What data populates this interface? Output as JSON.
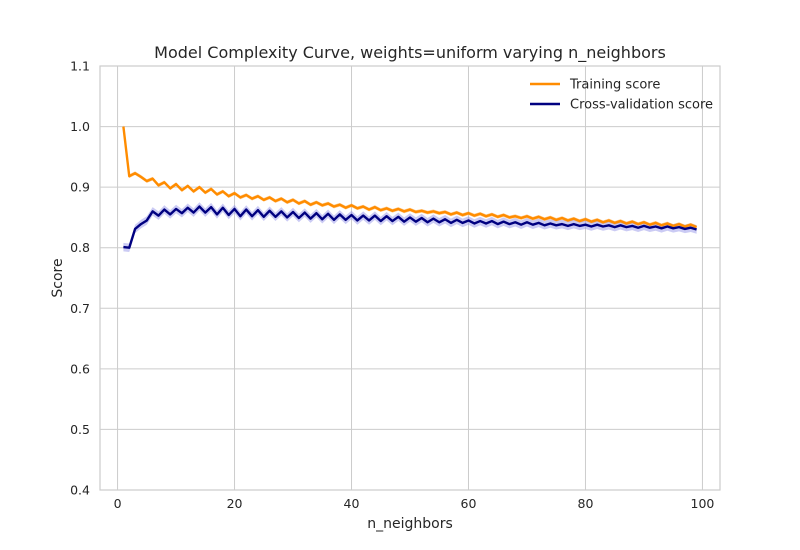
{
  "chart_data": {
    "type": "line",
    "title": "Model Complexity Curve, weights=uniform varying n_neighbors",
    "xlabel": "n_neighbors",
    "ylabel": "Score",
    "xlim": [
      -3,
      103
    ],
    "ylim": [
      0.4,
      1.1
    ],
    "x_ticks": [
      0,
      20,
      40,
      60,
      80,
      100
    ],
    "y_ticks": [
      0.4,
      0.5,
      0.6,
      0.7,
      0.8,
      0.9,
      1.0,
      1.1
    ],
    "grid": true,
    "legend_position": "top-right",
    "x": [
      1,
      2,
      3,
      4,
      5,
      6,
      7,
      8,
      9,
      10,
      11,
      12,
      13,
      14,
      15,
      16,
      17,
      18,
      19,
      20,
      21,
      22,
      23,
      24,
      25,
      26,
      27,
      28,
      29,
      30,
      31,
      32,
      33,
      34,
      35,
      36,
      37,
      38,
      39,
      40,
      41,
      42,
      43,
      44,
      45,
      46,
      47,
      48,
      49,
      50,
      51,
      52,
      53,
      54,
      55,
      56,
      57,
      58,
      59,
      60,
      61,
      62,
      63,
      64,
      65,
      66,
      67,
      68,
      69,
      70,
      71,
      72,
      73,
      74,
      75,
      76,
      77,
      78,
      79,
      80,
      81,
      82,
      83,
      84,
      85,
      86,
      87,
      88,
      89,
      90,
      91,
      92,
      93,
      94,
      95,
      96,
      97,
      98,
      99
    ],
    "series": [
      {
        "name": "Training score",
        "color": "#ff8c00",
        "values": [
          1.0,
          0.918,
          0.923,
          0.917,
          0.91,
          0.914,
          0.903,
          0.908,
          0.898,
          0.905,
          0.895,
          0.902,
          0.893,
          0.9,
          0.891,
          0.897,
          0.888,
          0.893,
          0.885,
          0.89,
          0.883,
          0.887,
          0.881,
          0.885,
          0.879,
          0.883,
          0.877,
          0.881,
          0.875,
          0.879,
          0.873,
          0.877,
          0.871,
          0.875,
          0.87,
          0.873,
          0.868,
          0.871,
          0.866,
          0.87,
          0.865,
          0.868,
          0.863,
          0.867,
          0.862,
          0.865,
          0.861,
          0.864,
          0.86,
          0.863,
          0.859,
          0.861,
          0.858,
          0.86,
          0.857,
          0.859,
          0.855,
          0.858,
          0.854,
          0.857,
          0.853,
          0.856,
          0.852,
          0.855,
          0.851,
          0.854,
          0.85,
          0.852,
          0.849,
          0.852,
          0.848,
          0.851,
          0.847,
          0.85,
          0.846,
          0.849,
          0.845,
          0.848,
          0.844,
          0.847,
          0.843,
          0.846,
          0.842,
          0.845,
          0.841,
          0.844,
          0.84,
          0.843,
          0.839,
          0.842,
          0.838,
          0.841,
          0.837,
          0.84,
          0.836,
          0.839,
          0.835,
          0.838,
          0.834
        ],
        "band": 0.003
      },
      {
        "name": "Cross-validation score",
        "color": "#000080",
        "band_color": "#8c8ce6",
        "values": [
          0.801,
          0.8,
          0.831,
          0.839,
          0.845,
          0.86,
          0.853,
          0.863,
          0.855,
          0.864,
          0.857,
          0.866,
          0.858,
          0.868,
          0.858,
          0.867,
          0.855,
          0.866,
          0.854,
          0.864,
          0.852,
          0.863,
          0.852,
          0.862,
          0.851,
          0.861,
          0.851,
          0.86,
          0.85,
          0.859,
          0.849,
          0.858,
          0.848,
          0.857,
          0.847,
          0.856,
          0.846,
          0.855,
          0.846,
          0.854,
          0.845,
          0.853,
          0.845,
          0.853,
          0.844,
          0.852,
          0.844,
          0.851,
          0.843,
          0.85,
          0.843,
          0.849,
          0.842,
          0.848,
          0.842,
          0.847,
          0.841,
          0.846,
          0.841,
          0.845,
          0.84,
          0.844,
          0.84,
          0.844,
          0.839,
          0.843,
          0.839,
          0.842,
          0.838,
          0.842,
          0.838,
          0.841,
          0.837,
          0.84,
          0.837,
          0.839,
          0.836,
          0.839,
          0.836,
          0.838,
          0.835,
          0.838,
          0.835,
          0.837,
          0.834,
          0.837,
          0.834,
          0.836,
          0.833,
          0.836,
          0.833,
          0.835,
          0.832,
          0.835,
          0.832,
          0.834,
          0.831,
          0.833,
          0.83
        ],
        "band": 0.007
      }
    ]
  }
}
